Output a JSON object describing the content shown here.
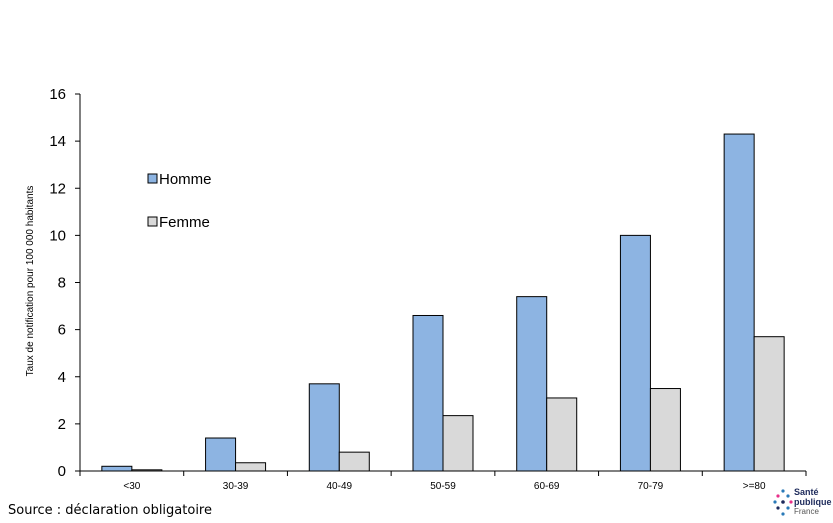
{
  "chart_data": {
    "type": "bar",
    "title": "",
    "xlabel": "",
    "ylabel": "Taux de notification pour 100 000 habitants",
    "ylim": [
      0,
      16
    ],
    "yticks": [
      0,
      2,
      4,
      6,
      8,
      10,
      12,
      14,
      16
    ],
    "grid": false,
    "legend_position": "top-left",
    "categories": [
      "<30",
      "30-39",
      "40-49",
      "50-59",
      "60-69",
      "70-79",
      ">=80"
    ],
    "series": [
      {
        "name": "Homme",
        "color": "#8db4e2",
        "values": [
          0.2,
          1.4,
          3.7,
          6.6,
          7.4,
          10.0,
          14.3
        ]
      },
      {
        "name": "Femme",
        "color": "#d9d9d9",
        "values": [
          0.05,
          0.35,
          0.8,
          2.35,
          3.1,
          3.5,
          5.7
        ]
      }
    ]
  },
  "footer": {
    "source": "Source : déclaration obligatoire"
  },
  "logo": {
    "line1": "Santé",
    "line2": "publique",
    "line3": "France"
  }
}
